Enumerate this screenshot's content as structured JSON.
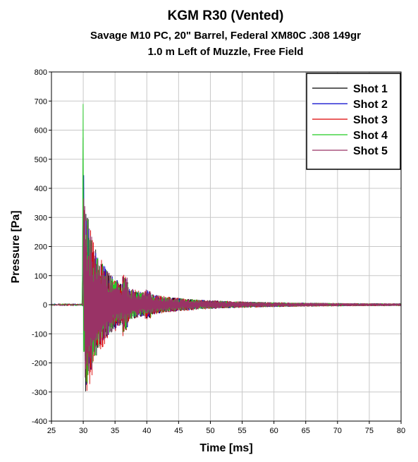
{
  "chart_data": {
    "type": "line",
    "title": "KGM R30 (Vented)",
    "subtitle_lines": [
      "Savage M10 PC, 20\" Barrel, Federal XM80C .308 149gr",
      "1.0 m Left of Muzzle, Free Field"
    ],
    "xlabel": "Time [ms]",
    "ylabel": "Pressure [Pa]",
    "xlim": [
      25,
      80
    ],
    "ylim": [
      -400,
      800
    ],
    "xticks": [
      25,
      30,
      35,
      40,
      45,
      50,
      55,
      60,
      65,
      70,
      75,
      80
    ],
    "yticks": [
      -400,
      -300,
      -200,
      -100,
      0,
      100,
      200,
      300,
      400,
      500,
      600,
      700,
      800
    ],
    "grid": true,
    "legend_position": "top-right",
    "series": [
      {
        "name": "Shot 1",
        "color": "#000000",
        "peak_positive": 575,
        "peak_negative": -285,
        "onset_ms": 29.9
      },
      {
        "name": "Shot 2",
        "color": "#0000cc",
        "peak_positive": 445,
        "peak_negative": -215,
        "onset_ms": 30.0
      },
      {
        "name": "Shot 3",
        "color": "#dd0000",
        "peak_positive": 325,
        "peak_negative": -195,
        "onset_ms": 30.1
      },
      {
        "name": "Shot 4",
        "color": "#22cc22",
        "peak_positive": 690,
        "peak_negative": -295,
        "onset_ms": 29.9
      },
      {
        "name": "Shot 5",
        "color": "#993366",
        "peak_positive": 365,
        "peak_negative": -165,
        "onset_ms": 30.0
      }
    ]
  }
}
